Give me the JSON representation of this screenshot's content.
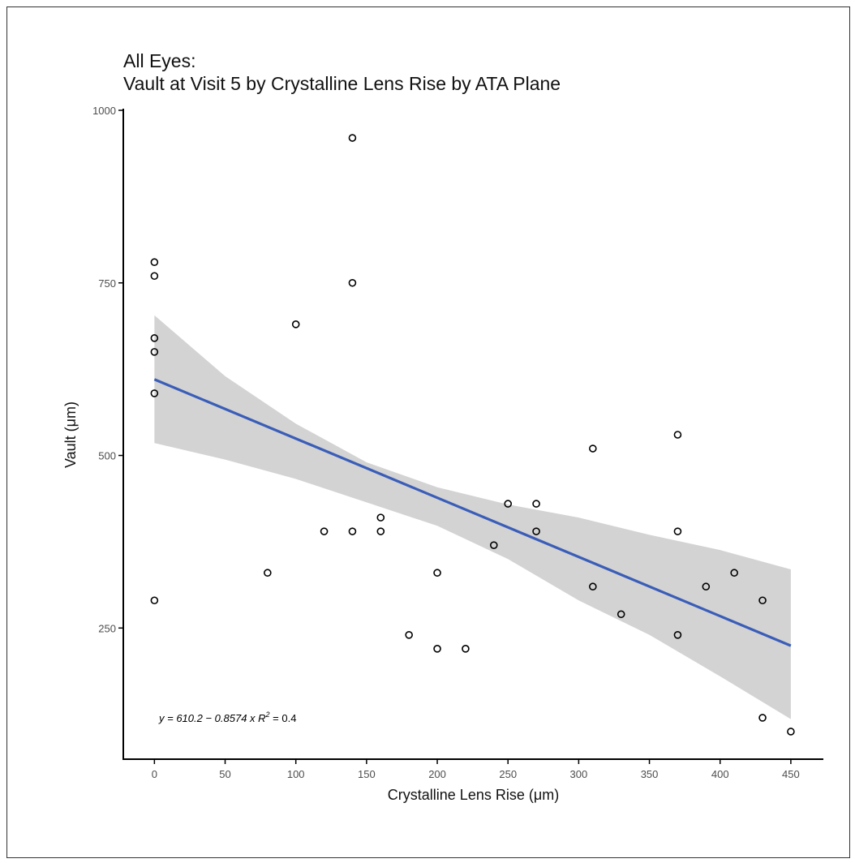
{
  "chart_data": {
    "type": "scatter",
    "title": "All Eyes:",
    "subtitle": "Vault at Visit 5 by Crystalline Lens Rise by ATA Plane",
    "xlabel": "Crystalline Lens Rise (μm)",
    "ylabel": "Vault (μm)",
    "xlim": [
      -22,
      473
    ],
    "ylim": [
      60,
      1000
    ],
    "x_ticks": [
      0,
      50,
      100,
      150,
      200,
      250,
      300,
      350,
      400,
      450
    ],
    "y_ticks": [
      250,
      500,
      750,
      1000
    ],
    "grid": false,
    "points": [
      {
        "x": 0,
        "y": 780
      },
      {
        "x": 0,
        "y": 760
      },
      {
        "x": 0,
        "y": 670
      },
      {
        "x": 0,
        "y": 650
      },
      {
        "x": 0,
        "y": 590
      },
      {
        "x": 0,
        "y": 290
      },
      {
        "x": 80,
        "y": 330
      },
      {
        "x": 100,
        "y": 690
      },
      {
        "x": 120,
        "y": 390
      },
      {
        "x": 140,
        "y": 960
      },
      {
        "x": 140,
        "y": 750
      },
      {
        "x": 140,
        "y": 390
      },
      {
        "x": 160,
        "y": 410
      },
      {
        "x": 160,
        "y": 390
      },
      {
        "x": 180,
        "y": 240
      },
      {
        "x": 200,
        "y": 330
      },
      {
        "x": 200,
        "y": 220
      },
      {
        "x": 220,
        "y": 220
      },
      {
        "x": 240,
        "y": 370
      },
      {
        "x": 250,
        "y": 430
      },
      {
        "x": 270,
        "y": 430
      },
      {
        "x": 270,
        "y": 390
      },
      {
        "x": 310,
        "y": 510
      },
      {
        "x": 310,
        "y": 310
      },
      {
        "x": 330,
        "y": 270
      },
      {
        "x": 370,
        "y": 530
      },
      {
        "x": 370,
        "y": 390
      },
      {
        "x": 370,
        "y": 240
      },
      {
        "x": 390,
        "y": 310
      },
      {
        "x": 410,
        "y": 330
      },
      {
        "x": 430,
        "y": 290
      },
      {
        "x": 430,
        "y": 120
      },
      {
        "x": 450,
        "y": 100
      }
    ],
    "fit": {
      "intercept": 610.2,
      "slope": -0.8574,
      "x_range": [
        0,
        450
      ]
    },
    "confidence_band": [
      {
        "x": 0,
        "lo": 518,
        "hi": 703
      },
      {
        "x": 50,
        "lo": 494,
        "hi": 615
      },
      {
        "x": 100,
        "lo": 466,
        "hi": 546
      },
      {
        "x": 150,
        "lo": 432,
        "hi": 490
      },
      {
        "x": 200,
        "lo": 398,
        "hi": 454
      },
      {
        "x": 250,
        "lo": 350,
        "hi": 429
      },
      {
        "x": 300,
        "lo": 290,
        "hi": 410
      },
      {
        "x": 350,
        "lo": 240,
        "hi": 385
      },
      {
        "x": 400,
        "lo": 180,
        "hi": 363
      },
      {
        "x": 450,
        "lo": 118,
        "hi": 335
      }
    ],
    "annotation": {
      "prefix": "y = 610.2 − 0.8574 x   R",
      "sup": "2",
      "suffix": " = 0.4"
    },
    "colors": {
      "points_stroke": "#000000",
      "line": "#3A5DB8",
      "band": "#D3D3D3",
      "axis": "#000000",
      "tick_text": "#4D4D4D"
    }
  }
}
